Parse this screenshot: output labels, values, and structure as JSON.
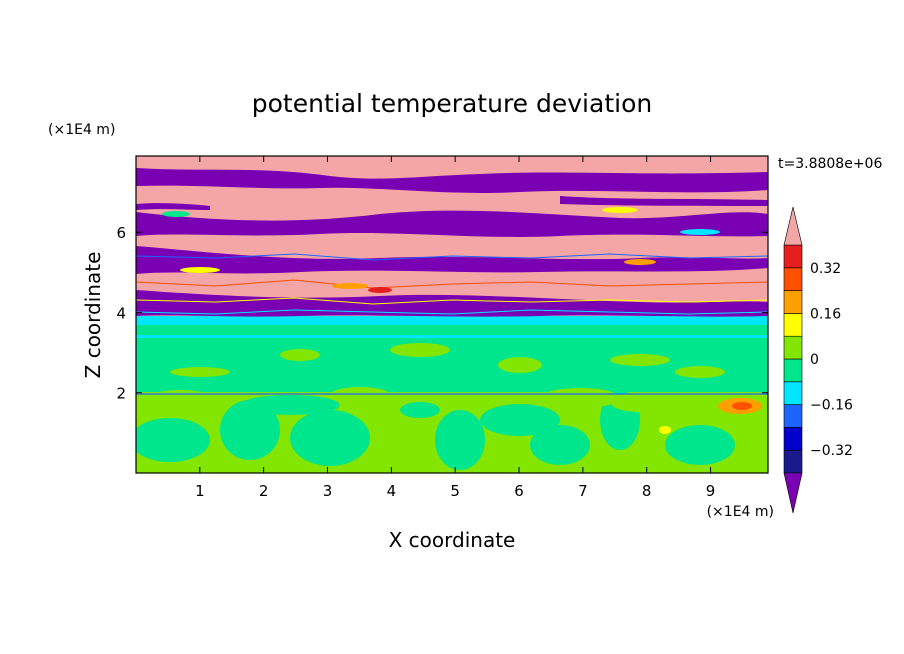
{
  "chart_data": {
    "type": "heatmap",
    "title": "potential temperature deviation",
    "time_label": "t=3.8808e+06",
    "xlabel": "X coordinate",
    "ylabel": "Z coordinate",
    "x_unit": "(×1E4 m)",
    "y_unit": "(×1E4 m)",
    "xlim": [
      0,
      9.9
    ],
    "ylim": [
      0,
      7.9
    ],
    "x_ticks": [
      "1",
      "2",
      "3",
      "4",
      "5",
      "6",
      "7",
      "8",
      "9"
    ],
    "y_ticks": [
      "2",
      "4",
      "6"
    ],
    "colorbar": {
      "labels": [
        "0.32",
        "0.16",
        "0",
        "−0.16",
        "−0.32"
      ],
      "levels": [
        -0.4,
        -0.32,
        -0.24,
        -0.16,
        -0.08,
        0,
        0.08,
        0.16,
        0.24,
        0.32,
        0.4
      ],
      "colors": [
        "#1a1a8c",
        "#0000cc",
        "#1e64ff",
        "#00e6ff",
        "#00e68c",
        "#82e600",
        "#ffff00",
        "#ffa000",
        "#ff5000",
        "#e61e1e"
      ],
      "under_color": "#7a00b4",
      "over_color": "#f4a6a6"
    },
    "layers": [
      {
        "z_min": 0.0,
        "z_max": 2.0,
        "dominant": "0 to 0.08",
        "secondary": "-0.08 to 0"
      },
      {
        "z_min": 2.0,
        "z_max": 3.5,
        "dominant": "-0.08 to 0",
        "secondary": "0 to 0.08"
      },
      {
        "z_min": 3.5,
        "z_max": 4.0,
        "dominant": "-0.16 to -0.08",
        "secondary": "-0.08 to 0"
      },
      {
        "z_min": 4.0,
        "z_max": 7.9,
        "dominant": "alternating > 0.4 and < -0.4",
        "secondary": "thin layers of intermediate values"
      }
    ]
  }
}
